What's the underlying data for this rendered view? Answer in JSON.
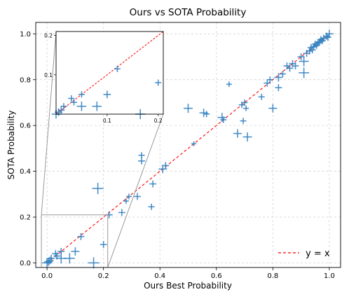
{
  "chart_data": {
    "type": "scatter",
    "title": "Ours vs SOTA Probability",
    "xlabel": "Ours Best Probability",
    "ylabel": "SOTA Probability",
    "xlim": [
      -0.04,
      1.04
    ],
    "ylim": [
      -0.02,
      1.05
    ],
    "xticks": [
      "0.0",
      "0.2",
      "0.4",
      "0.6",
      "0.8",
      "1.0"
    ],
    "yticks": [
      "0.0",
      "0.2",
      "0.4",
      "0.6",
      "0.8",
      "1.0"
    ],
    "grid": true,
    "legend": {
      "position": "bottom-right",
      "entries": [
        {
          "label": "y = x",
          "style": "dashed",
          "color": "#ff0000"
        }
      ]
    },
    "marker_color": "#2f7fbf",
    "reference_line": {
      "label": "y = x",
      "color": "#ff0000"
    },
    "inset": {
      "xlim": [
        0,
        0.21
      ],
      "ylim": [
        0,
        0.21
      ],
      "xticks": [
        "0.1",
        "0.2"
      ],
      "yticks": [
        "0.1",
        "0.2"
      ],
      "zoom_box_color": "#999999"
    },
    "points": [
      {
        "x": 0.0,
        "y": 0.0,
        "size": 1.4
      },
      {
        "x": 0.005,
        "y": 0.005,
        "size": 1.2
      },
      {
        "x": 0.01,
        "y": 0.01,
        "size": 1.1
      },
      {
        "x": 0.015,
        "y": 0.02,
        "size": 1
      },
      {
        "x": 0.03,
        "y": 0.04,
        "size": 1
      },
      {
        "x": 0.035,
        "y": 0.03,
        "size": 1
      },
      {
        "x": 0.05,
        "y": 0.05,
        "size": 1
      },
      {
        "x": 0.05,
        "y": 0.02,
        "size": 1.5
      },
      {
        "x": 0.08,
        "y": 0.02,
        "size": 1.5
      },
      {
        "x": 0.1,
        "y": 0.05,
        "size": 1.2
      },
      {
        "x": 0.12,
        "y": 0.115,
        "size": 1
      },
      {
        "x": 0.165,
        "y": 0.0,
        "size": 1.6
      },
      {
        "x": 0.2,
        "y": 0.08,
        "size": 1
      },
      {
        "x": 0.18,
        "y": 0.325,
        "size": 1.6
      },
      {
        "x": 0.22,
        "y": 0.21,
        "size": 1
      },
      {
        "x": 0.265,
        "y": 0.22,
        "size": 1
      },
      {
        "x": 0.28,
        "y": 0.27,
        "size": 0.8
      },
      {
        "x": 0.29,
        "y": 0.29,
        "size": 0.8
      },
      {
        "x": 0.32,
        "y": 0.29,
        "size": 1
      },
      {
        "x": 0.335,
        "y": 0.445,
        "size": 1
      },
      {
        "x": 0.335,
        "y": 0.47,
        "size": 0.9
      },
      {
        "x": 0.37,
        "y": 0.245,
        "size": 0.9
      },
      {
        "x": 0.375,
        "y": 0.345,
        "size": 1
      },
      {
        "x": 0.41,
        "y": 0.41,
        "size": 1.2
      },
      {
        "x": 0.42,
        "y": 0.425,
        "size": 1
      },
      {
        "x": 0.5,
        "y": 0.675,
        "size": 1.3
      },
      {
        "x": 0.52,
        "y": 0.52,
        "size": 0.7
      },
      {
        "x": 0.555,
        "y": 0.655,
        "size": 1.2
      },
      {
        "x": 0.565,
        "y": 0.65,
        "size": 0.9
      },
      {
        "x": 0.62,
        "y": 0.635,
        "size": 1.3
      },
      {
        "x": 0.625,
        "y": 0.625,
        "size": 0.9
      },
      {
        "x": 0.645,
        "y": 0.78,
        "size": 0.8
      },
      {
        "x": 0.675,
        "y": 0.565,
        "size": 1.2
      },
      {
        "x": 0.69,
        "y": 0.69,
        "size": 0.9
      },
      {
        "x": 0.695,
        "y": 0.62,
        "size": 0.9
      },
      {
        "x": 0.7,
        "y": 0.7,
        "size": 0.9
      },
      {
        "x": 0.705,
        "y": 0.675,
        "size": 0.8
      },
      {
        "x": 0.71,
        "y": 0.55,
        "size": 1.3
      },
      {
        "x": 0.76,
        "y": 0.725,
        "size": 0.9
      },
      {
        "x": 0.78,
        "y": 0.785,
        "size": 1
      },
      {
        "x": 0.79,
        "y": 0.8,
        "size": 0.9
      },
      {
        "x": 0.8,
        "y": 0.675,
        "size": 1.2
      },
      {
        "x": 0.82,
        "y": 0.81,
        "size": 1.2
      },
      {
        "x": 0.82,
        "y": 0.765,
        "size": 1
      },
      {
        "x": 0.835,
        "y": 0.825,
        "size": 0.9
      },
      {
        "x": 0.85,
        "y": 0.86,
        "size": 1
      },
      {
        "x": 0.86,
        "y": 0.85,
        "size": 1
      },
      {
        "x": 0.87,
        "y": 0.87,
        "size": 1
      },
      {
        "x": 0.88,
        "y": 0.86,
        "size": 1
      },
      {
        "x": 0.9,
        "y": 0.9,
        "size": 1
      },
      {
        "x": 0.91,
        "y": 0.88,
        "size": 1.4
      },
      {
        "x": 0.91,
        "y": 0.83,
        "size": 1.5
      },
      {
        "x": 0.92,
        "y": 0.915,
        "size": 1
      },
      {
        "x": 0.93,
        "y": 0.925,
        "size": 1
      },
      {
        "x": 0.935,
        "y": 0.94,
        "size": 1
      },
      {
        "x": 0.94,
        "y": 0.93,
        "size": 1
      },
      {
        "x": 0.945,
        "y": 0.945,
        "size": 1
      },
      {
        "x": 0.95,
        "y": 0.955,
        "size": 1
      },
      {
        "x": 0.955,
        "y": 0.95,
        "size": 1
      },
      {
        "x": 0.96,
        "y": 0.96,
        "size": 1
      },
      {
        "x": 0.965,
        "y": 0.965,
        "size": 1
      },
      {
        "x": 0.97,
        "y": 0.975,
        "size": 1
      },
      {
        "x": 0.975,
        "y": 0.97,
        "size": 1
      },
      {
        "x": 0.98,
        "y": 0.98,
        "size": 1
      },
      {
        "x": 0.99,
        "y": 0.99,
        "size": 1
      },
      {
        "x": 1.0,
        "y": 1.0,
        "size": 1.2
      },
      {
        "x": 0.995,
        "y": 0.985,
        "size": 1
      }
    ]
  }
}
